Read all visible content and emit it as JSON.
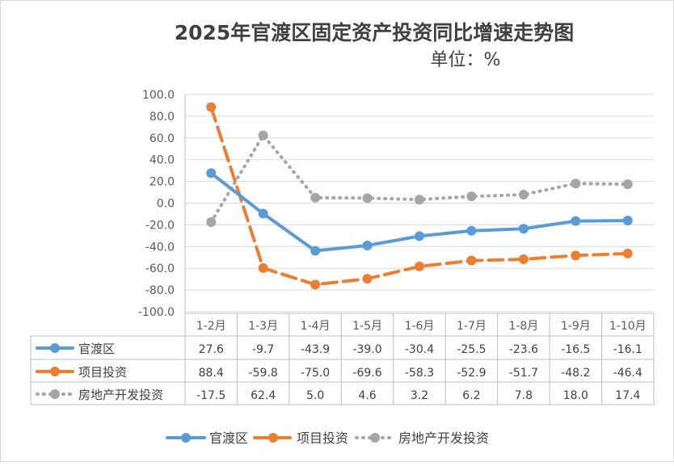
{
  "chart_data": {
    "type": "line",
    "title": "2025年官渡区固定资产投资同比增速走势图",
    "subtitle": "单位：%",
    "categories": [
      "1-2月",
      "1-3月",
      "1-4月",
      "1-5月",
      "1-6月",
      "1-7月",
      "1-8月",
      "1-9月",
      "1-10月"
    ],
    "ylim": [
      -100,
      100
    ],
    "yticks": [
      "100.0",
      "80.0",
      "60.0",
      "40.0",
      "20.0",
      "0.0",
      "-20.0",
      "-40.0",
      "-60.0",
      "-80.0",
      "-100.0"
    ],
    "grid": true,
    "legend_position": "bottom",
    "series": [
      {
        "name": "官渡区",
        "color": "#5B9BD5",
        "style": "solid",
        "values": [
          27.6,
          -9.7,
          -43.9,
          -39.0,
          -30.4,
          -25.5,
          -23.6,
          -16.5,
          -16.1
        ],
        "labels": [
          "27.6",
          "-9.7",
          "-43.9",
          "-39.0",
          "-30.4",
          "-25.5",
          "-23.6",
          "-16.5",
          "-16.1"
        ]
      },
      {
        "name": "项目投资",
        "color": "#ED7D31",
        "style": "dash",
        "values": [
          88.4,
          -59.8,
          -75.0,
          -69.6,
          -58.3,
          -52.9,
          -51.7,
          -48.2,
          -46.4
        ],
        "labels": [
          "88.4",
          "-59.8",
          "-75.0",
          "-69.6",
          "-58.3",
          "-52.9",
          "-51.7",
          "-48.2",
          "-46.4"
        ]
      },
      {
        "name": "房地产开发投资",
        "color": "#A5A5A5",
        "style": "dot",
        "values": [
          -17.5,
          62.4,
          5.0,
          4.6,
          3.2,
          6.2,
          7.8,
          18.0,
          17.4
        ],
        "labels": [
          "-17.5",
          "62.4",
          "5.0",
          "4.6",
          "3.2",
          "6.2",
          "7.8",
          "18.0",
          "17.4"
        ]
      }
    ]
  }
}
